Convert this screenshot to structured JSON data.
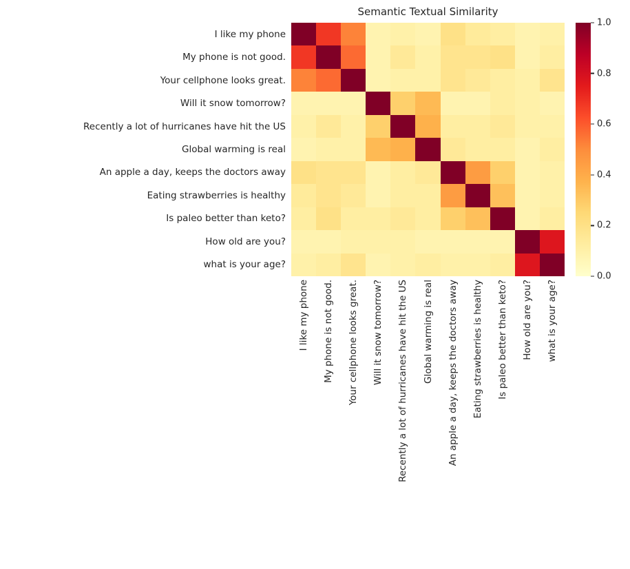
{
  "chart_data": {
    "type": "heatmap",
    "title": "Semantic Textual Similarity",
    "labels": [
      "I like my phone",
      "My phone is not good.",
      "Your cellphone looks great.",
      "Will it snow tomorrow?",
      "Recently a lot of hurricanes have hit the US",
      "Global warming is real",
      "An apple a day, keeps the doctors away",
      "Eating strawberries is healthy",
      "Is paleo better than keto?",
      "How old are you?",
      "what is your age?"
    ],
    "matrix": [
      [
        1.0,
        0.68,
        0.52,
        0.08,
        0.1,
        0.08,
        0.2,
        0.14,
        0.12,
        0.08,
        0.1
      ],
      [
        0.68,
        1.0,
        0.57,
        0.08,
        0.15,
        0.1,
        0.18,
        0.18,
        0.2,
        0.08,
        0.12
      ],
      [
        0.52,
        0.57,
        1.0,
        0.08,
        0.1,
        0.1,
        0.18,
        0.15,
        0.12,
        0.1,
        0.18
      ],
      [
        0.08,
        0.08,
        0.08,
        1.0,
        0.28,
        0.35,
        0.08,
        0.08,
        0.12,
        0.1,
        0.08
      ],
      [
        0.1,
        0.15,
        0.1,
        0.28,
        1.0,
        0.38,
        0.12,
        0.12,
        0.15,
        0.1,
        0.1
      ],
      [
        0.08,
        0.1,
        0.1,
        0.35,
        0.38,
        1.0,
        0.15,
        0.12,
        0.12,
        0.08,
        0.12
      ],
      [
        0.2,
        0.18,
        0.18,
        0.08,
        0.12,
        0.15,
        1.0,
        0.45,
        0.28,
        0.08,
        0.1
      ],
      [
        0.14,
        0.18,
        0.15,
        0.08,
        0.12,
        0.12,
        0.45,
        1.0,
        0.33,
        0.08,
        0.1
      ],
      [
        0.12,
        0.2,
        0.12,
        0.12,
        0.15,
        0.12,
        0.28,
        0.33,
        1.0,
        0.08,
        0.12
      ],
      [
        0.08,
        0.08,
        0.1,
        0.1,
        0.1,
        0.08,
        0.08,
        0.08,
        0.08,
        1.0,
        0.77
      ],
      [
        0.1,
        0.12,
        0.18,
        0.08,
        0.1,
        0.12,
        0.1,
        0.1,
        0.12,
        0.77,
        1.0
      ]
    ],
    "vmin": 0.0,
    "vmax": 1.0,
    "colorbar_ticks": [
      1.0,
      0.8,
      0.6,
      0.4,
      0.2,
      0.0
    ],
    "colormap": {
      "name": "YlOrRd",
      "stops": [
        "#ffffcc",
        "#ffeda0",
        "#fed976",
        "#feb24c",
        "#fd8d3c",
        "#fc4e2a",
        "#e31a1c",
        "#bd0026",
        "#800026"
      ]
    },
    "grid": false,
    "legend_position": "right-colorbar"
  },
  "style": {
    "background": "#ffffff",
    "text_color": "#262626"
  }
}
